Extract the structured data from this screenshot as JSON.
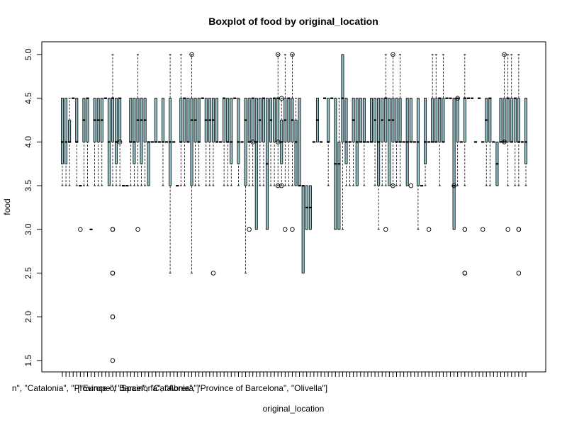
{
  "chart_data": {
    "type": "box",
    "title": "Boxplot of food by original_location",
    "xlabel": "original_location",
    "ylabel": "food",
    "ylim": [
      1.5,
      5.0
    ],
    "yticks": [
      "1.5",
      "2.0",
      "2.5",
      "3.0",
      "3.5",
      "4.0",
      "4.5",
      "5.0"
    ],
    "box_fill": "#8fbfc6",
    "visible_category_labels": [
      "n\", \"Catalonia\", \"Province of Barcelona\", \"Abrera\"]",
      "[\"Europe\", \"Spain\", \"Catalonia\", \"Province of Barcelona\", \"Olivella\"]"
    ],
    "label_category_index": [
      12,
      39
    ],
    "boxes": [
      {
        "min": 3.5,
        "q1": 3.75,
        "median": 4.0,
        "q3": 4.5,
        "max": 4.5
      },
      {
        "min": 3.5,
        "q1": 3.75,
        "median": 4.0,
        "q3": 4.5,
        "max": 4.5
      },
      {
        "min": 3.5,
        "q1": 4.0,
        "median": 4.0,
        "q3": 4.25,
        "max": 4.5
      },
      {
        "min": 4.5,
        "q1": 4.5,
        "median": 4.5,
        "q3": 4.5,
        "max": 4.5
      },
      {
        "min": 3.5,
        "q1": 4.0,
        "median": 4.0,
        "q3": 4.5,
        "max": 4.5
      },
      {
        "min": 3.5,
        "q1": 3.5,
        "median": 3.5,
        "q3": 3.5,
        "max": 3.5,
        "outliers": [
          3.0
        ]
      },
      {
        "min": 3.5,
        "q1": 4.0,
        "median": 4.25,
        "q3": 4.5,
        "max": 4.5
      },
      {
        "min": 3.5,
        "q1": 4.0,
        "median": 4.5,
        "q3": 4.5,
        "max": 4.5
      },
      {
        "min": 3.0,
        "q1": 3.0,
        "median": 3.0,
        "q3": 3.0,
        "max": 3.0
      },
      {
        "min": 3.5,
        "q1": 4.0,
        "median": 4.25,
        "q3": 4.5,
        "max": 4.5
      },
      {
        "min": 3.5,
        "q1": 4.0,
        "median": 4.25,
        "q3": 4.5,
        "max": 4.5
      },
      {
        "min": 3.5,
        "q1": 4.0,
        "median": 4.25,
        "q3": 4.5,
        "max": 4.5
      },
      {
        "min": 4.5,
        "q1": 4.5,
        "median": 4.5,
        "q3": 4.5,
        "max": 4.5
      },
      {
        "min": 3.5,
        "q1": 3.5,
        "median": 4.0,
        "q3": 4.5,
        "max": 4.5
      },
      {
        "min": 3.5,
        "q1": 4.0,
        "median": 4.5,
        "q3": 4.5,
        "max": 5.0,
        "outliers": [
          3.0,
          3.0,
          2.5,
          2.5,
          2.0,
          2.0,
          1.5
        ]
      },
      {
        "min": 3.5,
        "q1": 3.75,
        "median": 4.0,
        "q3": 4.5,
        "max": 4.5
      },
      {
        "min": 3.5,
        "q1": 4.0,
        "median": 4.5,
        "q3": 4.5,
        "max": 4.5,
        "outliers": [
          4.0
        ]
      },
      {
        "min": 3.5,
        "q1": 3.5,
        "median": 3.5,
        "q3": 3.5,
        "max": 3.5
      },
      {
        "min": 3.5,
        "q1": 3.5,
        "median": 3.5,
        "q3": 3.5,
        "max": 3.5
      },
      {
        "min": 3.5,
        "q1": 4.0,
        "median": 4.0,
        "q3": 4.5,
        "max": 4.5
      },
      {
        "min": 3.5,
        "q1": 3.75,
        "median": 4.0,
        "q3": 4.5,
        "max": 4.5
      },
      {
        "min": 3.5,
        "q1": 4.0,
        "median": 4.25,
        "q3": 4.5,
        "max": 5.0,
        "outliers": [
          3.0
        ]
      },
      {
        "min": 3.5,
        "q1": 3.75,
        "median": 4.25,
        "q3": 4.5,
        "max": 4.5
      },
      {
        "min": 3.5,
        "q1": 4.0,
        "median": 4.25,
        "q3": 4.5,
        "max": 4.5
      },
      {
        "min": 3.5,
        "q1": 3.5,
        "median": 4.0,
        "q3": 4.0,
        "max": 4.0
      },
      {
        "min": 4.0,
        "q1": 4.0,
        "median": 4.0,
        "q3": 4.0,
        "max": 4.0
      },
      {
        "min": 4.0,
        "q1": 4.0,
        "median": 4.0,
        "q3": 4.5,
        "max": 4.5
      },
      {
        "min": 4.0,
        "q1": 4.0,
        "median": 4.0,
        "q3": 4.0,
        "max": 4.0
      },
      {
        "min": 3.5,
        "q1": 4.0,
        "median": 4.0,
        "q3": 4.5,
        "max": 4.5
      },
      {
        "min": 4.0,
        "q1": 4.0,
        "median": 4.0,
        "q3": 4.0,
        "max": 4.0
      },
      {
        "min": 2.5,
        "q1": 3.5,
        "median": 4.0,
        "q3": 4.5,
        "max": 5.0
      },
      {
        "min": 4.0,
        "q1": 4.0,
        "median": 4.0,
        "q3": 4.0,
        "max": 4.0
      },
      {
        "min": 3.5,
        "q1": 3.5,
        "median": 3.5,
        "q3": 3.5,
        "max": 3.5
      },
      {
        "min": 3.5,
        "q1": 4.0,
        "median": 4.0,
        "q3": 4.5,
        "max": 5.0
      },
      {
        "min": 3.5,
        "q1": 4.0,
        "median": 4.5,
        "q3": 4.5,
        "max": 4.5
      },
      {
        "min": 4.0,
        "q1": 4.0,
        "median": 4.0,
        "q3": 4.5,
        "max": 4.5
      },
      {
        "min": 2.5,
        "q1": 3.5,
        "median": 4.25,
        "q3": 4.5,
        "max": 5.0,
        "outliers": [
          5.0
        ]
      },
      {
        "min": 3.5,
        "q1": 4.0,
        "median": 4.25,
        "q3": 4.5,
        "max": 4.5
      },
      {
        "min": 3.5,
        "q1": 4.0,
        "median": 4.0,
        "q3": 4.5,
        "max": 4.5
      },
      {
        "min": 4.5,
        "q1": 4.5,
        "median": 4.5,
        "q3": 4.5,
        "max": 4.5
      },
      {
        "min": 3.5,
        "q1": 4.0,
        "median": 4.25,
        "q3": 4.5,
        "max": 4.5
      },
      {
        "min": 3.5,
        "q1": 4.0,
        "median": 4.25,
        "q3": 4.5,
        "max": 4.5
      },
      {
        "min": 3.5,
        "q1": 4.0,
        "median": 4.25,
        "q3": 4.5,
        "max": 4.5,
        "outliers": [
          2.5
        ]
      },
      {
        "min": 4.0,
        "q1": 4.0,
        "median": 4.0,
        "q3": 4.5,
        "max": 4.5
      },
      {
        "min": 4.0,
        "q1": 4.0,
        "median": 4.0,
        "q3": 4.0,
        "max": 4.0
      },
      {
        "min": 3.5,
        "q1": 4.0,
        "median": 4.5,
        "q3": 4.5,
        "max": 4.5
      },
      {
        "min": 3.5,
        "q1": 4.0,
        "median": 4.0,
        "q3": 4.5,
        "max": 4.5
      },
      {
        "min": 3.5,
        "q1": 3.75,
        "median": 4.0,
        "q3": 4.5,
        "max": 4.5
      },
      {
        "min": 4.5,
        "q1": 4.5,
        "median": 4.5,
        "q3": 4.5,
        "max": 4.5
      },
      {
        "min": 3.5,
        "q1": 3.75,
        "median": 4.0,
        "q3": 4.5,
        "max": 4.5
      },
      {
        "min": 4.0,
        "q1": 4.0,
        "median": 4.0,
        "q3": 4.0,
        "max": 4.0
      },
      {
        "min": 2.5,
        "q1": 3.5,
        "median": 4.25,
        "q3": 4.5,
        "max": 4.5
      },
      {
        "min": 3.5,
        "q1": 4.0,
        "median": 4.0,
        "q3": 4.5,
        "max": 4.5,
        "outliers": [
          3.0
        ]
      },
      {
        "min": 3.5,
        "q1": 4.0,
        "median": 4.5,
        "q3": 4.5,
        "max": 4.5,
        "outliers": [
          4.0
        ]
      },
      {
        "min": 3.0,
        "q1": 3.0,
        "median": 4.0,
        "q3": 4.5,
        "max": 4.5
      },
      {
        "min": 3.5,
        "q1": 4.0,
        "median": 4.25,
        "q3": 4.5,
        "max": 4.5
      },
      {
        "min": 3.5,
        "q1": 4.0,
        "median": 4.5,
        "q3": 4.5,
        "max": 4.5
      },
      {
        "min": 3.0,
        "q1": 3.0,
        "median": 3.75,
        "q3": 4.5,
        "max": 4.5
      },
      {
        "min": 3.5,
        "q1": 4.0,
        "median": 4.25,
        "q3": 4.5,
        "max": 4.5
      },
      {
        "min": 3.5,
        "q1": 4.0,
        "median": 4.5,
        "q3": 4.5,
        "max": 4.5
      },
      {
        "min": 3.5,
        "q1": 4.0,
        "median": 4.5,
        "q3": 4.5,
        "max": 5.0,
        "outliers": [
          5.0,
          4.0,
          3.5
        ]
      },
      {
        "min": 3.5,
        "q1": 3.75,
        "median": 4.0,
        "q3": 4.25,
        "max": 4.5,
        "outliers": [
          4.5,
          3.5
        ]
      },
      {
        "min": 3.5,
        "q1": 4.0,
        "median": 4.25,
        "q3": 4.5,
        "max": 5.0,
        "outliers": [
          3.0
        ]
      },
      {
        "min": 3.5,
        "q1": 4.0,
        "median": 4.5,
        "q3": 4.5,
        "max": 4.5
      },
      {
        "min": 3.5,
        "q1": 4.0,
        "median": 4.25,
        "q3": 4.5,
        "max": 5.0,
        "outliers": [
          5.0,
          3.0
        ]
      },
      {
        "min": 3.5,
        "q1": 3.5,
        "median": 4.0,
        "q3": 4.25,
        "max": 4.5
      },
      {
        "min": 3.5,
        "q1": 3.5,
        "median": 3.5,
        "q3": 4.5,
        "max": 4.5
      },
      {
        "min": 2.5,
        "q1": 2.5,
        "median": 3.5,
        "q3": 3.5,
        "max": 3.5
      },
      {
        "min": 3.0,
        "q1": 3.0,
        "median": 3.25,
        "q3": 3.5,
        "max": 3.5
      },
      {
        "min": 3.0,
        "q1": 3.0,
        "median": 3.25,
        "q3": 3.5,
        "max": 3.5
      },
      {
        "min": 4.0,
        "q1": 4.0,
        "median": 4.0,
        "q3": 4.0,
        "max": 4.0
      },
      {
        "min": 4.0,
        "q1": 4.0,
        "median": 4.25,
        "q3": 4.5,
        "max": 4.5
      },
      {
        "min": 4.0,
        "q1": 4.0,
        "median": 4.0,
        "q3": 4.0,
        "max": 4.0
      },
      {
        "min": 4.5,
        "q1": 4.5,
        "median": 4.5,
        "q3": 4.5,
        "max": 4.5
      },
      {
        "min": 3.5,
        "q1": 4.0,
        "median": 4.0,
        "q3": 4.5,
        "max": 4.5
      },
      {
        "min": 4.5,
        "q1": 4.5,
        "median": 4.5,
        "q3": 4.5,
        "max": 4.5
      },
      {
        "min": 3.0,
        "q1": 3.0,
        "median": 3.75,
        "q3": 4.5,
        "max": 4.5
      },
      {
        "min": 3.0,
        "q1": 3.0,
        "median": 3.75,
        "q3": 4.0,
        "max": 4.5
      },
      {
        "min": 3.0,
        "q1": 4.0,
        "median": 4.5,
        "q3": 5.0,
        "max": 5.0
      },
      {
        "min": 3.5,
        "q1": 3.75,
        "median": 4.0,
        "q3": 4.5,
        "max": 4.5
      },
      {
        "min": 3.5,
        "q1": 4.0,
        "median": 4.0,
        "q3": 4.0,
        "max": 4.0
      },
      {
        "min": 3.5,
        "q1": 4.0,
        "median": 4.25,
        "q3": 4.5,
        "max": 4.5
      },
      {
        "min": 3.5,
        "q1": 3.5,
        "median": 4.0,
        "q3": 4.5,
        "max": 4.5
      },
      {
        "min": 4.0,
        "q1": 4.0,
        "median": 4.0,
        "q3": 4.5,
        "max": 4.5
      },
      {
        "min": 3.5,
        "q1": 4.0,
        "median": 4.0,
        "q3": 4.5,
        "max": 4.5
      },
      {
        "min": 4.0,
        "q1": 4.0,
        "median": 4.0,
        "q3": 4.0,
        "max": 4.0
      },
      {
        "min": 4.0,
        "q1": 4.0,
        "median": 4.0,
        "q3": 4.5,
        "max": 4.5
      },
      {
        "min": 3.5,
        "q1": 4.0,
        "median": 4.25,
        "q3": 4.5,
        "max": 4.5
      },
      {
        "min": 3.0,
        "q1": 3.5,
        "median": 4.0,
        "q3": 4.5,
        "max": 4.5
      },
      {
        "min": 3.5,
        "q1": 4.0,
        "median": 4.25,
        "q3": 4.5,
        "max": 4.5
      },
      {
        "min": 3.5,
        "q1": 4.0,
        "median": 4.5,
        "q3": 4.5,
        "max": 5.0,
        "outliers": [
          3.0
        ]
      },
      {
        "min": 3.5,
        "q1": 3.5,
        "median": 4.25,
        "q3": 4.5,
        "max": 4.5
      },
      {
        "min": 3.5,
        "q1": 4.0,
        "median": 4.25,
        "q3": 4.5,
        "max": 5.0,
        "outliers": [
          5.0,
          3.5
        ]
      },
      {
        "min": 3.5,
        "q1": 4.0,
        "median": 4.0,
        "q3": 4.5,
        "max": 4.5
      },
      {
        "min": 3.5,
        "q1": 4.0,
        "median": 4.0,
        "q3": 4.5,
        "max": 5.0
      },
      {
        "min": 4.0,
        "q1": 4.0,
        "median": 4.0,
        "q3": 4.0,
        "max": 4.0
      },
      {
        "min": 3.5,
        "q1": 3.5,
        "median": 4.0,
        "q3": 4.5,
        "max": 4.5
      },
      {
        "min": 4.0,
        "q1": 4.0,
        "median": 4.0,
        "q3": 4.5,
        "max": 4.5,
        "outliers": [
          3.5
        ]
      },
      {
        "min": 4.0,
        "q1": 4.0,
        "median": 4.0,
        "q3": 4.0,
        "max": 4.0
      },
      {
        "min": 3.0,
        "q1": 3.5,
        "median": 4.0,
        "q3": 4.5,
        "max": 4.5
      },
      {
        "min": 3.5,
        "q1": 3.5,
        "median": 3.5,
        "q3": 3.5,
        "max": 3.5
      },
      {
        "min": 3.5,
        "q1": 3.75,
        "median": 4.0,
        "q3": 4.5,
        "max": 4.5
      },
      {
        "min": 4.0,
        "q1": 4.0,
        "median": 4.0,
        "q3": 4.0,
        "max": 4.0,
        "outliers": [
          3.0
        ]
      },
      {
        "min": 4.0,
        "q1": 4.0,
        "median": 4.0,
        "q3": 4.5,
        "max": 5.0
      },
      {
        "min": 4.0,
        "q1": 4.0,
        "median": 4.0,
        "q3": 4.5,
        "max": 5.0
      },
      {
        "min": 3.5,
        "q1": 4.0,
        "median": 4.5,
        "q3": 4.5,
        "max": 4.5
      },
      {
        "min": 4.0,
        "q1": 4.0,
        "median": 4.0,
        "q3": 4.5,
        "max": 5.0
      },
      {
        "min": 4.5,
        "q1": 4.5,
        "median": 4.5,
        "q3": 4.5,
        "max": 4.5
      },
      {
        "min": 4.5,
        "q1": 4.5,
        "median": 4.5,
        "q3": 4.5,
        "max": 4.5
      },
      {
        "min": 3.0,
        "q1": 3.0,
        "median": 3.5,
        "q3": 4.5,
        "max": 4.5,
        "outliers": [
          3.5
        ]
      },
      {
        "min": 3.5,
        "q1": 4.0,
        "median": 4.5,
        "q3": 4.5,
        "max": 4.5,
        "outliers": [
          4.5
        ]
      },
      {
        "min": 4.0,
        "q1": 4.0,
        "median": 4.0,
        "q3": 4.0,
        "max": 4.0
      },
      {
        "min": 3.5,
        "q1": 4.0,
        "median": 4.5,
        "q3": 4.5,
        "max": 5.0,
        "outliers": [
          3.0,
          3.0,
          2.5,
          2.5
        ]
      },
      {
        "min": 4.5,
        "q1": 4.5,
        "median": 4.5,
        "q3": 4.5,
        "max": 4.5
      },
      {
        "min": 4.5,
        "q1": 4.5,
        "median": 4.5,
        "q3": 4.5,
        "max": 4.5
      },
      {
        "min": 4.0,
        "q1": 4.0,
        "median": 4.0,
        "q3": 4.0,
        "max": 4.0
      },
      {
        "min": 4.5,
        "q1": 4.5,
        "median": 4.5,
        "q3": 4.5,
        "max": 4.5
      },
      {
        "min": 4.0,
        "q1": 4.0,
        "median": 4.0,
        "q3": 4.0,
        "max": 4.0,
        "outliers": [
          3.0
        ]
      },
      {
        "min": 3.5,
        "q1": 4.0,
        "median": 4.25,
        "q3": 4.5,
        "max": 4.5
      },
      {
        "min": 3.5,
        "q1": 4.0,
        "median": 4.5,
        "q3": 4.5,
        "max": 4.5
      },
      {
        "min": 4.0,
        "q1": 4.0,
        "median": 4.0,
        "q3": 4.0,
        "max": 4.0
      },
      {
        "min": 3.5,
        "q1": 3.5,
        "median": 3.75,
        "q3": 4.0,
        "max": 4.0
      },
      {
        "min": 4.0,
        "q1": 4.0,
        "median": 4.0,
        "q3": 4.5,
        "max": 4.5
      },
      {
        "min": 4.0,
        "q1": 4.0,
        "median": 4.0,
        "q3": 4.5,
        "max": 5.0,
        "outliers": [
          5.0,
          4.0
        ]
      },
      {
        "min": 3.5,
        "q1": 4.0,
        "median": 4.5,
        "q3": 4.5,
        "max": 5.0,
        "outliers": [
          3.0
        ]
      },
      {
        "min": 4.0,
        "q1": 4.0,
        "median": 4.0,
        "q3": 4.5,
        "max": 5.0
      },
      {
        "min": 3.5,
        "q1": 4.0,
        "median": 4.5,
        "q3": 4.5,
        "max": 4.5
      },
      {
        "min": 3.5,
        "q1": 4.0,
        "median": 4.0,
        "q3": 4.5,
        "max": 5.0,
        "outliers": [
          3.0,
          3.0,
          2.5
        ]
      },
      {
        "min": 4.0,
        "q1": 4.0,
        "median": 4.0,
        "q3": 4.0,
        "max": 4.0
      },
      {
        "min": 3.5,
        "q1": 3.75,
        "median": 4.0,
        "q3": 4.5,
        "max": 4.5
      }
    ]
  }
}
